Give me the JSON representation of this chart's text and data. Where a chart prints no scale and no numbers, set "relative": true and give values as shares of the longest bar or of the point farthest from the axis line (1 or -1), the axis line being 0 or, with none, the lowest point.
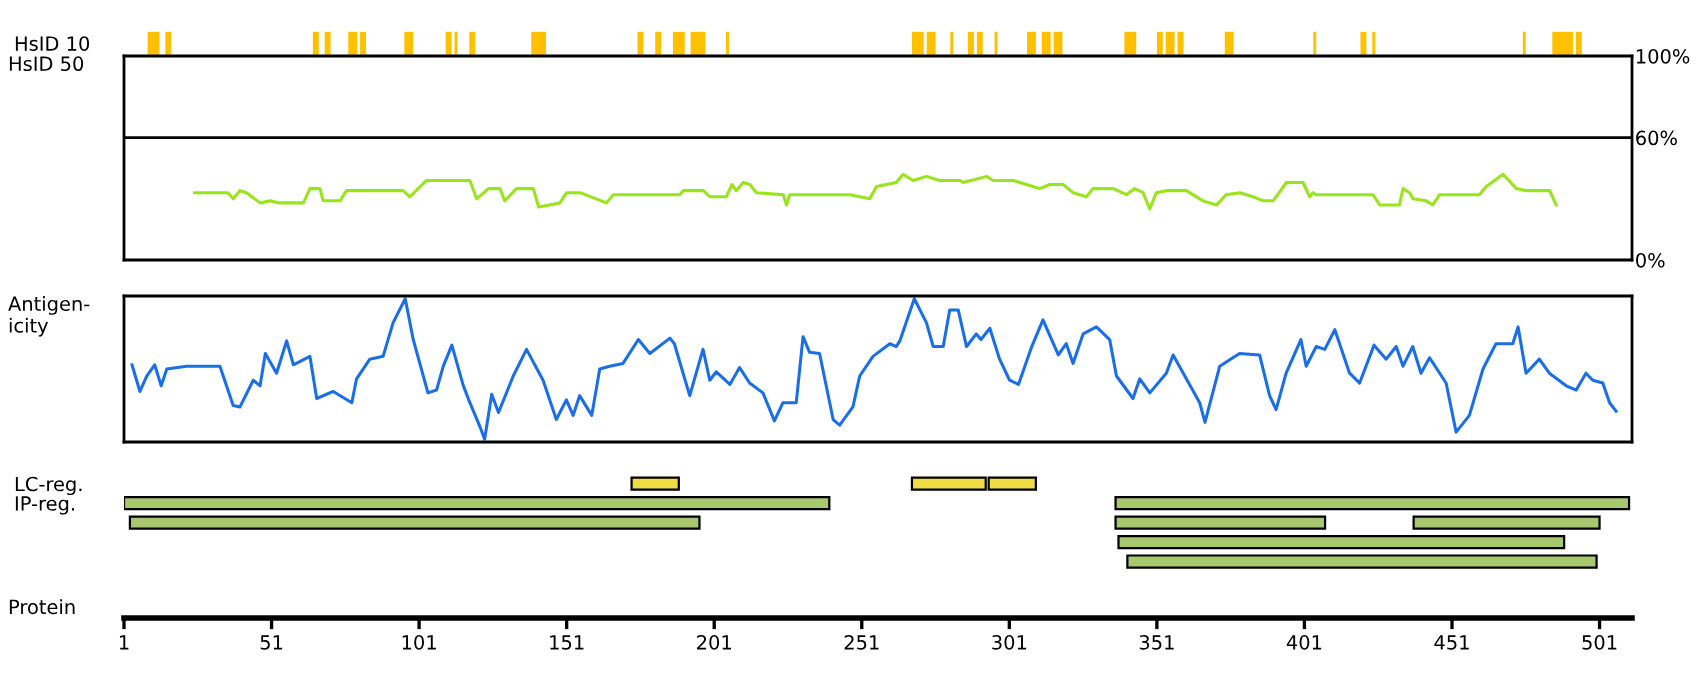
{
  "chart_data": [
    {
      "type": "bar",
      "orientation": "horizontal",
      "categories": [
        "HsID 10"
      ],
      "xlim": [
        1,
        512
      ],
      "tick_labels": "y",
      "legend": false,
      "series": [
        {
          "color": "#ffc000",
          "base": [
            9
          ],
          "values": [
            4
          ]
        },
        {
          "color": "#ffc000",
          "base": [
            15
          ],
          "values": [
            2
          ]
        },
        {
          "color": "#ffc000",
          "base": [
            65
          ],
          "values": [
            2
          ]
        },
        {
          "color": "#ffc000",
          "base": [
            69
          ],
          "values": [
            2
          ]
        },
        {
          "color": "#ffc000",
          "base": [
            77
          ],
          "values": [
            3
          ]
        },
        {
          "color": "#ffc000",
          "base": [
            81
          ],
          "values": [
            2
          ]
        },
        {
          "color": "#ffc000",
          "base": [
            96
          ],
          "values": [
            3
          ]
        },
        {
          "color": "#ffc000",
          "base": [
            110
          ],
          "values": [
            2
          ]
        },
        {
          "color": "#ffc000",
          "base": [
            113
          ],
          "values": [
            1
          ]
        },
        {
          "color": "#ffc000",
          "base": [
            118
          ],
          "values": [
            2
          ]
        },
        {
          "color": "#ffc000",
          "base": [
            139
          ],
          "values": [
            5
          ]
        },
        {
          "color": "#ffc000",
          "base": [
            175
          ],
          "values": [
            2
          ]
        },
        {
          "color": "#ffc000",
          "base": [
            181
          ],
          "values": [
            2
          ]
        },
        {
          "color": "#ffc000",
          "base": [
            187
          ],
          "values": [
            4
          ]
        },
        {
          "color": "#ffc000",
          "base": [
            193
          ],
          "values": [
            5
          ]
        },
        {
          "color": "#ffc000",
          "base": [
            205
          ],
          "values": [
            1
          ]
        },
        {
          "color": "#ffc000",
          "base": [
            268
          ],
          "values": [
            4
          ]
        },
        {
          "color": "#ffc000",
          "base": [
            273
          ],
          "values": [
            3
          ]
        },
        {
          "color": "#ffc000",
          "base": [
            281
          ],
          "values": [
            1
          ]
        },
        {
          "color": "#ffc000",
          "base": [
            287
          ],
          "values": [
            2
          ]
        },
        {
          "color": "#ffc000",
          "base": [
            290
          ],
          "values": [
            2
          ]
        },
        {
          "color": "#ffc000",
          "base": [
            296
          ],
          "values": [
            1
          ]
        },
        {
          "color": "#ffc000",
          "base": [
            307
          ],
          "values": [
            3
          ]
        },
        {
          "color": "#ffc000",
          "base": [
            312
          ],
          "values": [
            3
          ]
        },
        {
          "color": "#ffc000",
          "base": [
            316
          ],
          "values": [
            3
          ]
        },
        {
          "color": "#ffc000",
          "base": [
            340
          ],
          "values": [
            4
          ]
        },
        {
          "color": "#ffc000",
          "base": [
            351
          ],
          "values": [
            2
          ]
        },
        {
          "color": "#ffc000",
          "base": [
            354
          ],
          "values": [
            3
          ]
        },
        {
          "color": "#ffc000",
          "base": [
            358
          ],
          "values": [
            2
          ]
        },
        {
          "color": "#ffc000",
          "base": [
            374
          ],
          "values": [
            3
          ]
        },
        {
          "color": "#ffc000",
          "base": [
            404
          ],
          "values": [
            1
          ]
        },
        {
          "color": "#ffc000",
          "base": [
            420
          ],
          "values": [
            2
          ]
        },
        {
          "color": "#ffc000",
          "base": [
            424
          ],
          "values": [
            1
          ]
        },
        {
          "color": "#ffc000",
          "base": [
            475
          ],
          "values": [
            1
          ]
        },
        {
          "color": "#ffc000",
          "base": [
            485
          ],
          "values": [
            7
          ]
        },
        {
          "color": "#ffc000",
          "base": [
            493
          ],
          "values": [
            2
          ]
        }
      ]
    },
    {
      "type": "line",
      "ylabel": "HsID 50",
      "xlim": [
        1,
        512
      ],
      "ylim": [
        0,
        100
      ],
      "yticks": [
        {
          "value": 0,
          "label": "0%"
        },
        {
          "value": 60,
          "label": "60%"
        },
        {
          "value": 100,
          "label": "100%"
        }
      ],
      "tick_labels": "y",
      "grid": false,
      "legend": false,
      "marker": "none",
      "line_style": "solid",
      "ref_lines": [
        {
          "axis": "y",
          "value": 60,
          "color": "#000000"
        }
      ],
      "series": [
        {
          "color": "#99e51a",
          "x": [
            24.9,
            36.2,
            38.0,
            40.3,
            42.5,
            47.1,
            50.5,
            53.8,
            61.8,
            64.0,
            67.4,
            68.5,
            74.2,
            76.4,
            95.6,
            97.9,
            103.5,
            118.2,
            120.5,
            124.5,
            128.4,
            130.0,
            134.0,
            139.7,
            141.5,
            148.7,
            151.0,
            155.5,
            164.5,
            166.8,
            189.3,
            190.5,
            197.3,
            199.5,
            205.1,
            207.0,
            208.5,
            210.8,
            213.1,
            215.3,
            224.4,
            225.5,
            226.6,
            243.5,
            247.0,
            253.7,
            256.0,
            262.7,
            265.0,
            268.4,
            272.9,
            277.4,
            284.2,
            285.4,
            293.3,
            295.5,
            302.3,
            306.8,
            311.3,
            314.7,
            319.2,
            322.6,
            327.1,
            329.4,
            336.2,
            340.7,
            343.4,
            346.3,
            348.6,
            350.8,
            354.2,
            361.0,
            366.6,
            371.2,
            374.5,
            379.1,
            383.6,
            387.0,
            390.4,
            394.9,
            400.5,
            402.8,
            403.9,
            405.0,
            424.2,
            426.5,
            433.2,
            434.4,
            436.6,
            437.8,
            442.3,
            444.5,
            446.8,
            460.3,
            462.6,
            468.3,
            472.8,
            476.2,
            484.1,
            486.3
          ],
          "values": [
            33,
            33,
            30,
            34,
            33,
            28,
            29,
            28,
            28,
            35,
            35,
            29,
            29,
            34,
            34,
            31,
            39,
            39,
            30,
            35,
            35,
            29,
            35,
            35,
            26,
            28,
            33,
            33,
            28,
            32,
            32,
            34,
            34,
            31,
            31,
            37,
            34,
            38,
            37,
            33,
            32,
            27,
            32,
            32,
            32,
            30,
            36,
            38,
            42,
            39,
            41,
            39,
            39,
            38,
            41,
            39,
            39,
            37,
            35,
            37,
            37,
            33,
            31,
            35,
            35,
            32,
            35,
            33,
            25,
            33,
            34,
            34,
            29,
            27,
            32,
            33,
            31,
            29,
            29,
            38,
            38,
            31,
            33,
            32,
            32,
            27,
            27,
            35,
            33,
            30,
            29,
            27,
            32,
            32,
            36,
            42,
            35,
            34,
            34,
            27
          ]
        }
      ]
    },
    {
      "type": "line",
      "ylabel": "Antigen-\nicity",
      "xlim": [
        1,
        512
      ],
      "relative": true,
      "tick_labels": false,
      "grid": false,
      "legend": false,
      "marker": "none",
      "line_style": "solid",
      "series": [
        {
          "color": "#1a6fe8",
          "x": [
            3.7,
            6.4,
            8.7,
            11.4,
            13.6,
            15.5,
            22.2,
            33.5,
            38.0,
            40.3,
            44.8,
            47.1,
            48.9,
            52.7,
            56.1,
            58.4,
            64.0,
            66.3,
            71.9,
            78.2,
            79.8,
            84.3,
            88.8,
            92.2,
            96.3,
            99.0,
            104.0,
            106.9,
            109.2,
            112.1,
            116.0,
            118.2,
            121.6,
            123.2,
            125.6,
            127.9,
            132.9,
            137.4,
            143.0,
            147.5,
            150.9,
            153.2,
            155.4,
            159.5,
            162.2,
            165.6,
            170.1,
            175.3,
            179.2,
            186.0,
            187.5,
            192.7,
            197.2,
            199.5,
            201.7,
            206.3,
            209.6,
            213.0,
            217.5,
            221.4,
            224.3,
            228.8,
            231.1,
            233.3,
            236.7,
            241.3,
            243.5,
            248.0,
            250.3,
            254.8,
            260.5,
            262.7,
            263.9,
            268.8,
            272.9,
            275.2,
            278.6,
            280.8,
            283.7,
            286.5,
            289.8,
            291.4,
            294.4,
            297.7,
            301.1,
            304.1,
            308.6,
            312.4,
            317.6,
            320.3,
            322.6,
            326.0,
            330.5,
            335.0,
            337.3,
            342.9,
            345.2,
            348.6,
            354.2,
            356.5,
            365.5,
            367.3,
            372.3,
            379.0,
            385.8,
            389.2,
            391.4,
            394.8,
            399.8,
            401.6,
            405.0,
            407.9,
            411.3,
            416.3,
            419.7,
            424.6,
            428.7,
            432.1,
            434.4,
            437.7,
            440.5,
            443.4,
            449.0,
            452.4,
            456.9,
            461.5,
            465.9,
            471.6,
            473.4,
            476.1,
            480.6,
            484.0,
            489.7,
            493.1,
            496.4,
            498.7,
            502.1,
            504.4,
            506.6
          ],
          "values": [
            0.53,
            0.34,
            0.45,
            0.53,
            0.38,
            0.5,
            0.52,
            0.52,
            0.24,
            0.23,
            0.42,
            0.38,
            0.61,
            0.47,
            0.7,
            0.53,
            0.59,
            0.29,
            0.34,
            0.26,
            0.43,
            0.57,
            0.59,
            0.83,
            1.0,
            0.71,
            0.33,
            0.35,
            0.52,
            0.67,
            0.38,
            0.26,
            0.09,
            0.0,
            0.32,
            0.19,
            0.45,
            0.64,
            0.42,
            0.14,
            0.28,
            0.17,
            0.31,
            0.17,
            0.5,
            0.52,
            0.54,
            0.71,
            0.61,
            0.72,
            0.68,
            0.31,
            0.64,
            0.42,
            0.48,
            0.39,
            0.51,
            0.4,
            0.33,
            0.13,
            0.26,
            0.26,
            0.73,
            0.62,
            0.61,
            0.14,
            0.1,
            0.23,
            0.45,
            0.59,
            0.68,
            0.66,
            0.7,
            1.0,
            0.83,
            0.66,
            0.66,
            0.92,
            0.92,
            0.66,
            0.75,
            0.71,
            0.79,
            0.57,
            0.42,
            0.39,
            0.66,
            0.85,
            0.6,
            0.68,
            0.54,
            0.75,
            0.8,
            0.71,
            0.45,
            0.29,
            0.43,
            0.33,
            0.47,
            0.6,
            0.26,
            0.12,
            0.52,
            0.61,
            0.6,
            0.31,
            0.21,
            0.47,
            0.71,
            0.52,
            0.66,
            0.64,
            0.78,
            0.47,
            0.4,
            0.67,
            0.57,
            0.66,
            0.52,
            0.66,
            0.47,
            0.58,
            0.4,
            0.05,
            0.17,
            0.5,
            0.68,
            0.68,
            0.8,
            0.47,
            0.57,
            0.47,
            0.38,
            0.35,
            0.47,
            0.42,
            0.4,
            0.26,
            0.2
          ]
        }
      ]
    },
    {
      "type": "bar",
      "orientation": "horizontal",
      "categories": [
        "LC-reg.",
        "IP-reg.",
        null,
        null,
        null
      ],
      "xlabel": "Protein",
      "xlim": [
        1,
        512
      ],
      "xticks": [
        1,
        51,
        101,
        151,
        201,
        251,
        301,
        351,
        401,
        451,
        501
      ],
      "grid": false,
      "legend": false,
      "series": [
        {
          "colors": [
            "#eedd44",
            "#a8c870",
            "#a8c870",
            "#a8c870",
            "#a8c870"
          ],
          "base": [
            173,
            1,
            3,
            338,
            341
          ],
          "values": [
            16,
            239,
            193,
            151,
            159
          ]
        },
        {
          "colors": [
            "#eedd44",
            "#a8c870",
            "#a8c870",
            null,
            null
          ],
          "base": [
            268,
            337,
            337,
            null,
            null
          ],
          "values": [
            25,
            174,
            71,
            null,
            null
          ]
        },
        {
          "colors": [
            "#eedd44",
            null,
            "#a8c870",
            null,
            null
          ],
          "base": [
            294,
            null,
            438,
            null,
            null
          ],
          "values": [
            16,
            null,
            63,
            null,
            null
          ]
        }
      ]
    }
  ]
}
